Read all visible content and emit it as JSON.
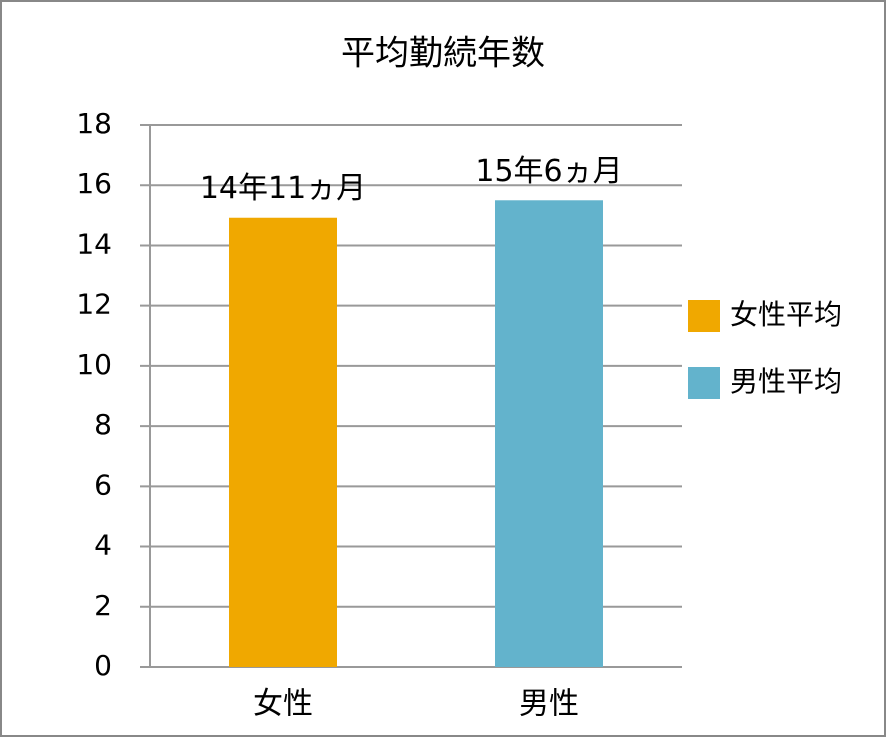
{
  "chart_data": {
    "type": "bar",
    "title": "平均勤続年数",
    "categories": [
      "女性",
      "男性"
    ],
    "series": [
      {
        "name": "女性平均",
        "color": "#f0a800",
        "values": [
          14.92,
          null
        ],
        "value_labels": [
          "14年11ヵ月",
          null
        ]
      },
      {
        "name": "男性平均",
        "color": "#63b3cc",
        "values": [
          null,
          15.5
        ],
        "value_labels": [
          null,
          "15年6ヵ月"
        ]
      }
    ],
    "ylim": [
      0,
      18
    ],
    "yticks": [
      0,
      2,
      4,
      6,
      8,
      10,
      12,
      14,
      16,
      18
    ],
    "grid": true,
    "legend": "right"
  }
}
